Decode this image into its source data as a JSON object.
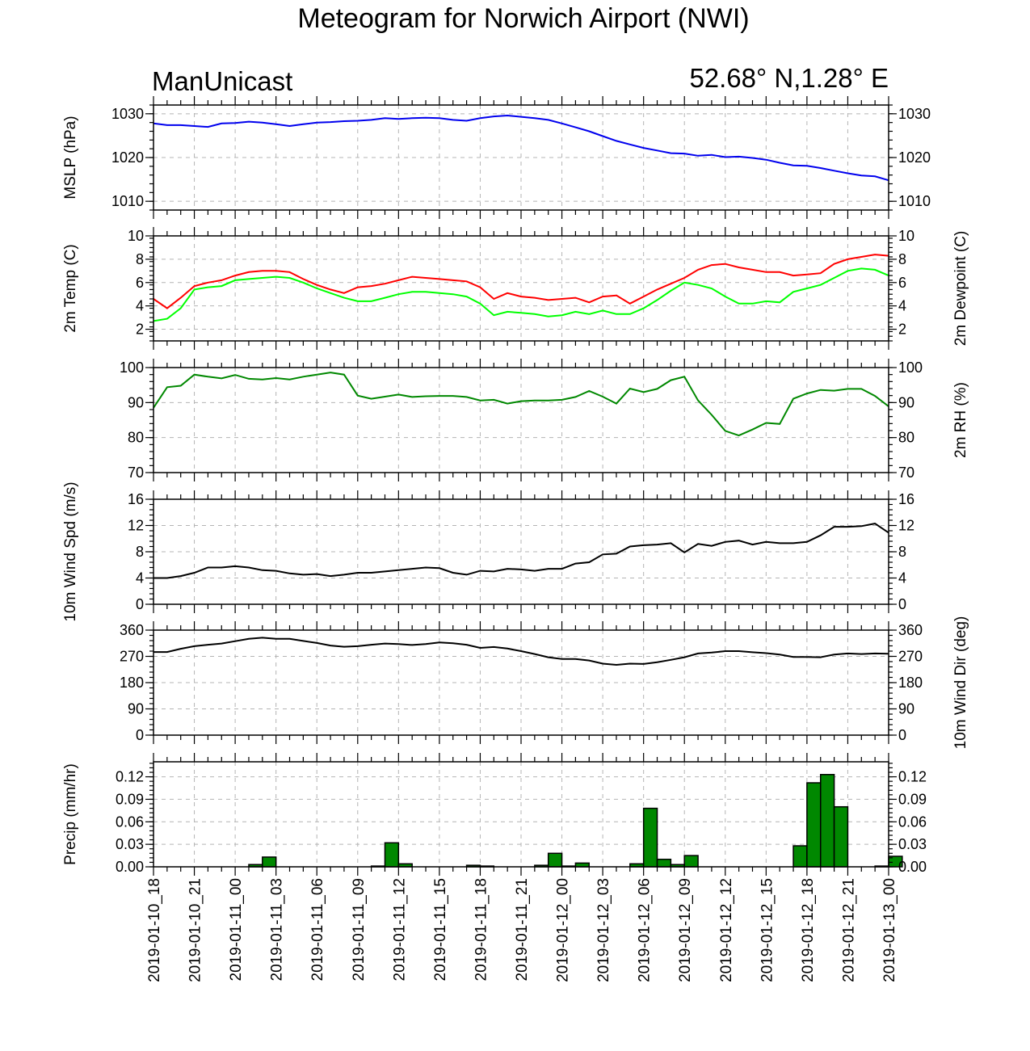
{
  "header": {
    "title": "Meteogram for Norwich Airport (NWI)",
    "model": "ManUnicast",
    "location": "52.68° N,1.28° E"
  },
  "time_labels": [
    "2019-01-10_18",
    "2019-01-10_21",
    "2019-01-11_00",
    "2019-01-11_03",
    "2019-01-11_06",
    "2019-01-11_09",
    "2019-01-11_12",
    "2019-01-11_15",
    "2019-01-11_18",
    "2019-01-11_21",
    "2019-01-12_00",
    "2019-01-12_03",
    "2019-01-12_06",
    "2019-01-12_09",
    "2019-01-12_12",
    "2019-01-12_15",
    "2019-01-12_18",
    "2019-01-12_21",
    "2019-01-13_00"
  ],
  "chart_data": [
    {
      "type": "line",
      "ylabel": "MSLP (hPa)",
      "ylim": [
        1008,
        1032
      ],
      "yticks": [
        1010,
        1020,
        1030
      ],
      "grid": true,
      "series": [
        {
          "color": "#0000ee",
          "values": [
            1027.8,
            1027.4,
            1027.4,
            1027.2,
            1027.0,
            1027.8,
            1027.9,
            1028.2,
            1028.0,
            1027.6,
            1027.2,
            1027.6,
            1028.0,
            1028.1,
            1028.3,
            1028.4,
            1028.6,
            1029.0,
            1028.8,
            1029.0,
            1029.1,
            1029.0,
            1028.6,
            1028.4,
            1029.0,
            1029.4,
            1029.6,
            1029.3,
            1029.0,
            1028.6,
            1027.8,
            1026.9,
            1026.0,
            1024.9,
            1023.8,
            1023.0,
            1022.2,
            1021.6,
            1021.0,
            1020.9,
            1020.4,
            1020.6,
            1020.1,
            1020.2,
            1019.9,
            1019.5,
            1018.8,
            1018.2,
            1018.1,
            1017.6,
            1017.0,
            1016.4,
            1015.9,
            1015.7,
            1014.8
          ]
        }
      ]
    },
    {
      "type": "line",
      "ylabel": "2m Temp (C)",
      "ylabel_right": "2m Dewpoint (C)",
      "ylim": [
        1,
        10
      ],
      "yticks": [
        2,
        4,
        6,
        8,
        10
      ],
      "grid": true,
      "series": [
        {
          "color": "#ff0000",
          "values": [
            4.6,
            3.8,
            4.7,
            5.7,
            6.0,
            6.2,
            6.6,
            6.9,
            7.0,
            7.0,
            6.9,
            6.3,
            5.8,
            5.4,
            5.1,
            5.6,
            5.7,
            5.9,
            6.2,
            6.5,
            6.4,
            6.3,
            6.2,
            6.1,
            5.6,
            4.6,
            5.1,
            4.8,
            4.7,
            4.5,
            4.6,
            4.7,
            4.3,
            4.8,
            4.9,
            4.2,
            4.8,
            5.4,
            5.9,
            6.4,
            7.1,
            7.5,
            7.6,
            7.3,
            7.1,
            6.9,
            6.9,
            6.6,
            6.7,
            6.8,
            7.6,
            8.0,
            8.2,
            8.4,
            8.3
          ]
        },
        {
          "color": "#00ff00",
          "values": [
            2.7,
            2.9,
            3.8,
            5.4,
            5.6,
            5.7,
            6.2,
            6.3,
            6.4,
            6.5,
            6.4,
            6.0,
            5.5,
            5.1,
            4.7,
            4.4,
            4.4,
            4.7,
            5.0,
            5.2,
            5.2,
            5.1,
            5.0,
            4.8,
            4.2,
            3.2,
            3.5,
            3.4,
            3.3,
            3.1,
            3.2,
            3.5,
            3.3,
            3.6,
            3.3,
            3.3,
            3.8,
            4.5,
            5.3,
            6.0,
            5.8,
            5.5,
            4.8,
            4.2,
            4.2,
            4.4,
            4.3,
            5.2,
            5.5,
            5.8,
            6.4,
            7.0,
            7.2,
            7.1,
            6.6
          ]
        }
      ]
    },
    {
      "type": "line",
      "ylabel_right": "2m RH (%)",
      "ylim": [
        70,
        100
      ],
      "yticks": [
        70,
        80,
        90,
        100
      ],
      "grid": true,
      "series": [
        {
          "color": "#008800",
          "values": [
            88.5,
            94.4,
            94.8,
            98.0,
            97.4,
            96.9,
            97.9,
            96.8,
            96.6,
            97.0,
            96.6,
            97.4,
            98.0,
            98.6,
            98.0,
            92.0,
            91.1,
            91.7,
            92.3,
            91.6,
            91.8,
            91.9,
            91.9,
            91.6,
            90.6,
            90.8,
            89.7,
            90.4,
            90.6,
            90.6,
            90.8,
            91.6,
            93.3,
            91.7,
            89.7,
            94.0,
            93.0,
            93.9,
            96.4,
            97.4,
            90.6,
            86.5,
            81.9,
            80.6,
            82.3,
            84.2,
            83.9,
            91.1,
            92.6,
            93.6,
            93.4,
            93.9,
            93.9,
            91.9,
            88.9
          ]
        }
      ]
    },
    {
      "type": "line",
      "ylabel": "10m Wind Spd (m/s)",
      "ylim": [
        0,
        16
      ],
      "yticks": [
        0,
        4,
        8,
        12,
        16
      ],
      "grid": true,
      "series": [
        {
          "color": "#000000",
          "values": [
            4.0,
            4.0,
            4.3,
            4.8,
            5.6,
            5.6,
            5.8,
            5.6,
            5.2,
            5.1,
            4.7,
            4.5,
            4.6,
            4.3,
            4.5,
            4.8,
            4.8,
            5.0,
            5.2,
            5.4,
            5.6,
            5.5,
            4.8,
            4.5,
            5.1,
            5.0,
            5.4,
            5.3,
            5.1,
            5.4,
            5.4,
            6.2,
            6.4,
            7.6,
            7.7,
            8.8,
            9.0,
            9.1,
            9.3,
            7.9,
            9.2,
            8.9,
            9.5,
            9.7,
            9.1,
            9.5,
            9.3,
            9.3,
            9.5,
            10.5,
            11.8,
            11.8,
            11.9,
            12.3,
            10.9
          ]
        }
      ]
    },
    {
      "type": "line",
      "ylabel_right": "10m Wind Dir (deg)",
      "ylim": [
        0,
        360
      ],
      "yticks": [
        0,
        90,
        180,
        270,
        360
      ],
      "grid": true,
      "series": [
        {
          "color": "#000000",
          "values": [
            285,
            285,
            296,
            305,
            310,
            314,
            322,
            330,
            334,
            330,
            330,
            323,
            316,
            307,
            303,
            305,
            310,
            314,
            312,
            309,
            312,
            318,
            315,
            310,
            299,
            302,
            297,
            288,
            278,
            267,
            261,
            261,
            256,
            245,
            241,
            245,
            244,
            250,
            258,
            267,
            280,
            283,
            288,
            288,
            284,
            281,
            276,
            268,
            268,
            267,
            276,
            280,
            278,
            280,
            279
          ]
        }
      ]
    },
    {
      "type": "bar",
      "ylabel": "Precip (mm/hr)",
      "ylim": [
        0,
        0.14
      ],
      "yticks": [
        0.0,
        0.03,
        0.06,
        0.09,
        0.12
      ],
      "ytick_labels": [
        "0.00",
        "0.03",
        "0.06",
        "0.09",
        "0.12"
      ],
      "grid": true,
      "color": "#008800",
      "values": [
        0,
        0,
        0,
        0,
        0,
        0,
        0,
        0.003,
        0.013,
        0,
        0,
        0,
        0,
        0,
        0,
        0,
        0.001,
        0.032,
        0.004,
        0,
        0,
        0,
        0,
        0.002,
        0.001,
        0,
        0,
        0,
        0.002,
        0.018,
        0.001,
        0.005,
        0,
        0,
        0,
        0.004,
        0.078,
        0.01,
        0.003,
        0.015,
        0,
        0,
        0,
        0,
        0,
        0,
        0,
        0.028,
        0.112,
        0.123,
        0.08,
        0,
        0,
        0.001,
        0.014
      ]
    }
  ]
}
